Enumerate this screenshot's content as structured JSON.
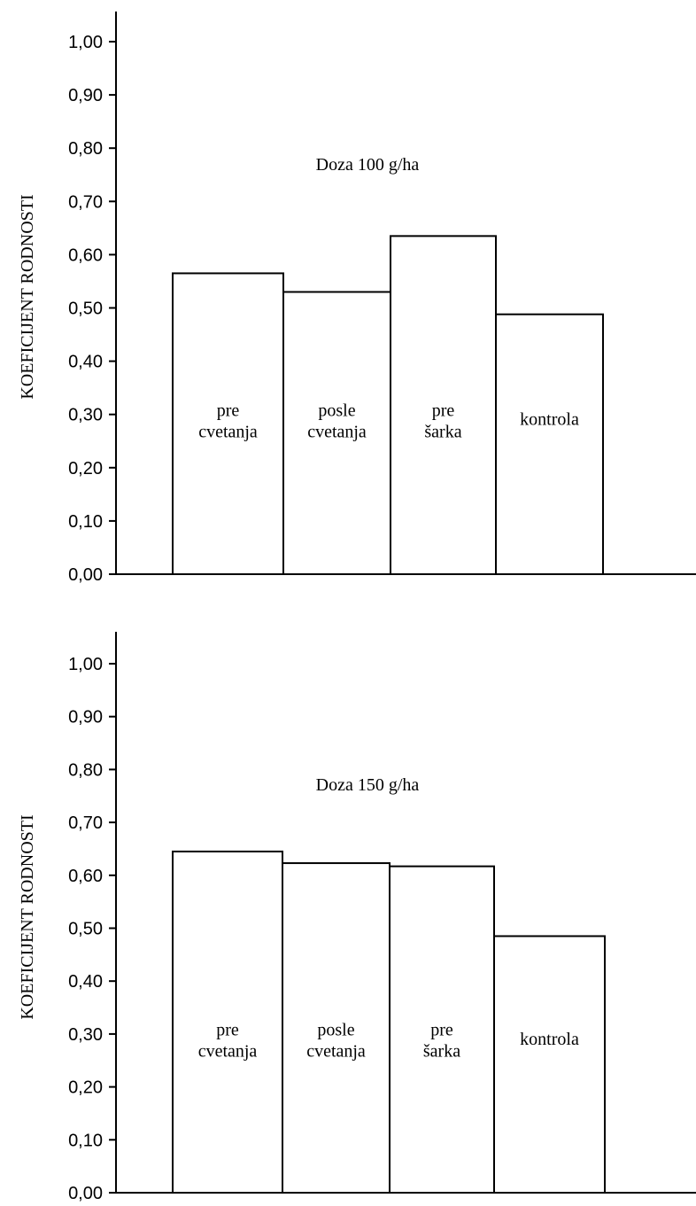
{
  "chart_data": [
    {
      "type": "bar",
      "annotation": "Doza 100 g/ha",
      "ylabel": "KOEFICIJENT RODNOSTI",
      "ylim": [
        0,
        1.0
      ],
      "yticks": [
        "0,00",
        "0,10",
        "0,20",
        "0,30",
        "0,40",
        "0,50",
        "0,60",
        "0,70",
        "0,80",
        "0,90",
        "1,00"
      ],
      "categories": [
        [
          "pre",
          "cvetanja"
        ],
        [
          "posle",
          "cvetanja"
        ],
        [
          "pre",
          "šarka"
        ],
        [
          "kontrola"
        ]
      ],
      "values": [
        0.565,
        0.53,
        0.635,
        0.488
      ],
      "grid": false,
      "legend": "none"
    },
    {
      "type": "bar",
      "annotation": "Doza 150 g/ha",
      "ylabel": "KOEFICIJENT RODNOSTI",
      "ylim": [
        0,
        1.0
      ],
      "yticks": [
        "0,00",
        "0,10",
        "0,20",
        "0,30",
        "0,40",
        "0,50",
        "0,60",
        "0,70",
        "0,80",
        "0,90",
        "1,00"
      ],
      "categories": [
        [
          "pre",
          "cvetanja"
        ],
        [
          "posle",
          "cvetanja"
        ],
        [
          "pre",
          "šarka"
        ],
        [
          "kontrola"
        ]
      ],
      "values": [
        0.645,
        0.623,
        0.617,
        0.485
      ],
      "grid": false,
      "legend": "none"
    }
  ]
}
